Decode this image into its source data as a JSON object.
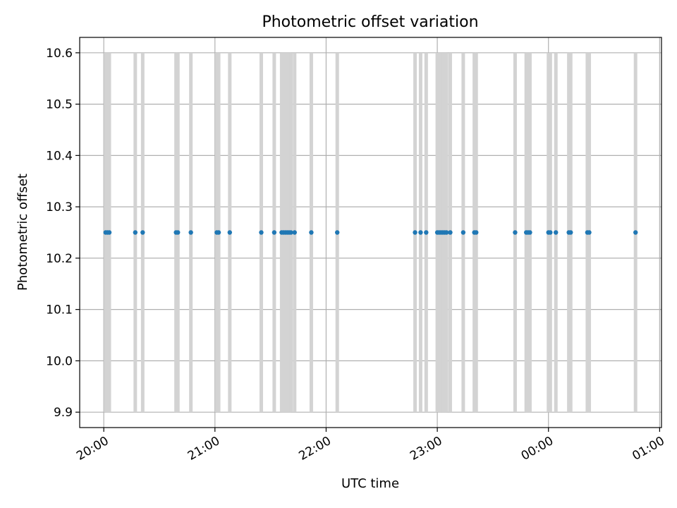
{
  "chart_data": {
    "type": "scatter",
    "title": "Photometric offset variation",
    "xlabel": "UTC time",
    "ylabel": "Photometric offset",
    "xlim": [
      "19:47",
      "01:01"
    ],
    "ylim": [
      9.87,
      10.63
    ],
    "x_ticks": [
      "20:00",
      "21:00",
      "22:00",
      "23:00",
      "00:00",
      "01:00"
    ],
    "y_ticks": [
      "9.9",
      "10.0",
      "10.1",
      "10.2",
      "10.3",
      "10.4",
      "10.5",
      "10.6"
    ],
    "grid": true,
    "colors": {
      "points": "#1f77b4",
      "bars": "#d3d3d3",
      "grid": "#b0b0b0"
    },
    "error_bar_range": [
      9.9,
      10.6
    ],
    "points": [
      {
        "x": "20:01",
        "y": 10.25
      },
      {
        "x": "20:02",
        "y": 10.25
      },
      {
        "x": "20:03",
        "y": 10.25
      },
      {
        "x": "20:17",
        "y": 10.25
      },
      {
        "x": "20:21",
        "y": 10.25
      },
      {
        "x": "20:39",
        "y": 10.25
      },
      {
        "x": "20:40",
        "y": 10.25
      },
      {
        "x": "20:47",
        "y": 10.25
      },
      {
        "x": "21:01",
        "y": 10.25
      },
      {
        "x": "21:02",
        "y": 10.25
      },
      {
        "x": "21:08",
        "y": 10.25
      },
      {
        "x": "21:25",
        "y": 10.25
      },
      {
        "x": "21:32",
        "y": 10.25
      },
      {
        "x": "21:36",
        "y": 10.25
      },
      {
        "x": "21:37",
        "y": 10.25
      },
      {
        "x": "21:38",
        "y": 10.25
      },
      {
        "x": "21:39",
        "y": 10.25
      },
      {
        "x": "21:40",
        "y": 10.25
      },
      {
        "x": "21:41",
        "y": 10.25
      },
      {
        "x": "21:43",
        "y": 10.25
      },
      {
        "x": "21:52",
        "y": 10.25
      },
      {
        "x": "22:06",
        "y": 10.25
      },
      {
        "x": "22:48",
        "y": 10.25
      },
      {
        "x": "22:51",
        "y": 10.25
      },
      {
        "x": "22:54",
        "y": 10.25
      },
      {
        "x": "23:00",
        "y": 10.25
      },
      {
        "x": "23:01",
        "y": 10.25
      },
      {
        "x": "23:02",
        "y": 10.25
      },
      {
        "x": "23:03",
        "y": 10.25
      },
      {
        "x": "23:04",
        "y": 10.25
      },
      {
        "x": "23:05",
        "y": 10.25
      },
      {
        "x": "23:07",
        "y": 10.25
      },
      {
        "x": "23:14",
        "y": 10.25
      },
      {
        "x": "23:20",
        "y": 10.25
      },
      {
        "x": "23:21",
        "y": 10.25
      },
      {
        "x": "23:42",
        "y": 10.25
      },
      {
        "x": "23:48",
        "y": 10.25
      },
      {
        "x": "23:49",
        "y": 10.25
      },
      {
        "x": "23:50",
        "y": 10.25
      },
      {
        "x": "00:00",
        "y": 10.25
      },
      {
        "x": "00:01",
        "y": 10.25
      },
      {
        "x": "00:04",
        "y": 10.25
      },
      {
        "x": "00:11",
        "y": 10.25
      },
      {
        "x": "00:12",
        "y": 10.25
      },
      {
        "x": "00:21",
        "y": 10.25
      },
      {
        "x": "00:22",
        "y": 10.25
      },
      {
        "x": "00:47",
        "y": 10.25
      }
    ]
  }
}
